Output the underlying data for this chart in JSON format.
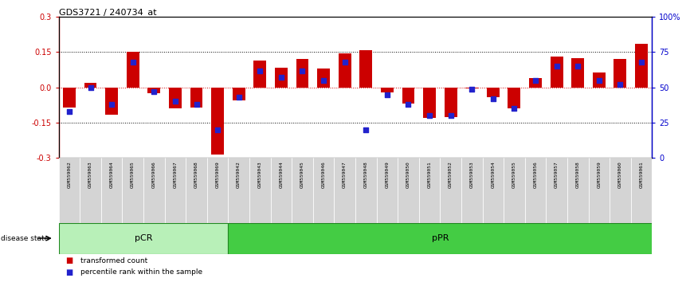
{
  "title": "GDS3721 / 240734_at",
  "samples": [
    "GSM559062",
    "GSM559063",
    "GSM559064",
    "GSM559065",
    "GSM559066",
    "GSM559067",
    "GSM559068",
    "GSM559069",
    "GSM559042",
    "GSM559043",
    "GSM559044",
    "GSM559045",
    "GSM559046",
    "GSM559047",
    "GSM559048",
    "GSM559049",
    "GSM559050",
    "GSM559051",
    "GSM559052",
    "GSM559053",
    "GSM559054",
    "GSM559055",
    "GSM559056",
    "GSM559057",
    "GSM559058",
    "GSM559059",
    "GSM559060",
    "GSM559061"
  ],
  "red_values": [
    -0.085,
    0.02,
    -0.115,
    0.15,
    -0.025,
    -0.09,
    -0.085,
    -0.285,
    -0.055,
    0.115,
    0.085,
    0.12,
    0.08,
    0.145,
    0.16,
    -0.02,
    -0.07,
    -0.13,
    -0.125,
    -0.005,
    -0.04,
    -0.09,
    0.04,
    0.13,
    0.125,
    0.065,
    0.12,
    0.185
  ],
  "blue_values_pct": [
    33,
    50,
    38,
    68,
    47,
    40,
    38,
    20,
    43,
    62,
    57,
    62,
    55,
    68,
    20,
    45,
    38,
    30,
    30,
    49,
    42,
    35,
    55,
    65,
    65,
    55,
    52,
    68
  ],
  "pCR_count": 8,
  "pPR_count": 20,
  "ylim": [
    -0.3,
    0.3
  ],
  "yticks_left": [
    -0.3,
    -0.15,
    0.0,
    0.15,
    0.3
  ],
  "ytick_labels_right": [
    "0",
    "25",
    "50",
    "75",
    "100%"
  ],
  "bar_color": "#cc0000",
  "dot_color": "#2222cc",
  "pCR_color": "#b8f0b8",
  "pPR_color": "#44cc44",
  "left_axis_color": "#cc0000",
  "right_axis_color": "#0000cc",
  "disease_state_label": "disease state",
  "pCR_label": "pCR",
  "pPR_label": "pPR",
  "legend_red": "transformed count",
  "legend_blue": "percentile rank within the sample",
  "fig_width": 8.66,
  "fig_height": 3.54,
  "dpi": 100
}
